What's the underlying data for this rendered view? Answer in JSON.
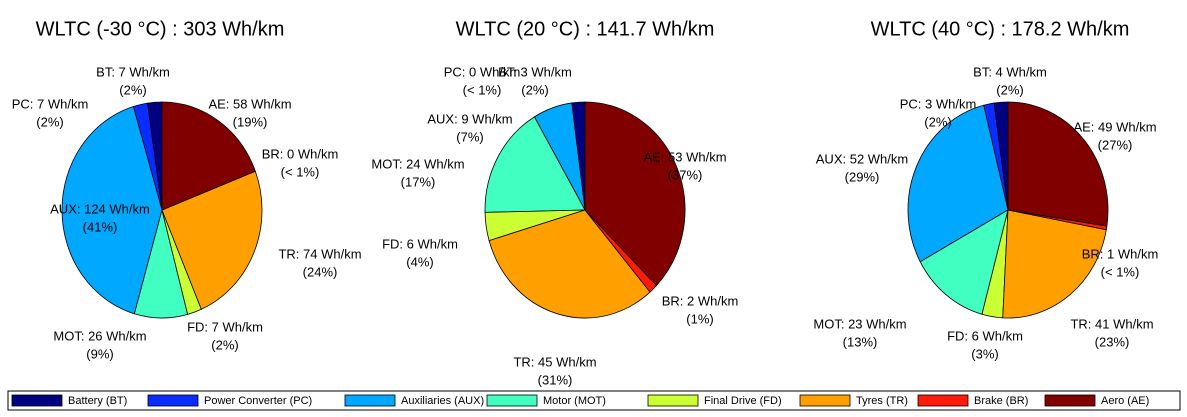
{
  "chart_data": [
    {
      "type": "pie",
      "title": "WLTC (-30 °C) : 303 Wh/km",
      "categories": [
        "BT",
        "PC",
        "AUX",
        "MOT",
        "FD",
        "TR",
        "BR",
        "AE"
      ],
      "values": [
        7,
        7,
        124,
        26,
        7,
        74,
        0,
        58
      ],
      "value_labels": [
        "BT: 7 Wh/km",
        "PC: 7 Wh/km",
        "AUX: 124 Wh/km",
        "MOT: 26 Wh/km",
        "FD: 7 Wh/km",
        "TR: 74 Wh/km",
        "BR: 0 Wh/km",
        "AE: 58 Wh/km"
      ],
      "percent_labels": [
        "(2%)",
        "(2%)",
        "(41%)",
        "(9%)",
        "(2%)",
        "(24%)",
        "(< 1%)",
        "(19%)"
      ]
    },
    {
      "type": "pie",
      "title": "WLTC (20 °C) : 141.7 Wh/km",
      "categories": [
        "BT",
        "PC",
        "AUX",
        "MOT",
        "FD",
        "TR",
        "BR",
        "AE"
      ],
      "values": [
        3,
        0,
        9,
        24,
        6,
        45,
        2,
        53
      ],
      "value_labels": [
        "BT: 3 Wh/km",
        "PC: 0 Wh/km",
        "AUX: 9 Wh/km",
        "MOT: 24 Wh/km",
        "FD: 6 Wh/km",
        "TR: 45 Wh/km",
        "BR: 2 Wh/km",
        "AE: 53 Wh/km"
      ],
      "percent_labels": [
        "(2%)",
        "(< 1%)",
        "(7%)",
        "(17%)",
        "(4%)",
        "(31%)",
        "(1%)",
        "(37%)"
      ]
    },
    {
      "type": "pie",
      "title": "WLTC (40 °C) : 178.2 Wh/km",
      "categories": [
        "BT",
        "PC",
        "AUX",
        "MOT",
        "FD",
        "TR",
        "BR",
        "AE"
      ],
      "values": [
        4,
        3,
        52,
        23,
        6,
        41,
        1,
        49
      ],
      "value_labels": [
        "BT: 4 Wh/km",
        "PC: 3 Wh/km",
        "AUX: 52 Wh/km",
        "MOT: 23 Wh/km",
        "FD: 6 Wh/km",
        "TR: 41 Wh/km",
        "BR: 1 Wh/km",
        "AE: 49 Wh/km"
      ],
      "percent_labels": [
        "(2%)",
        "(2%)",
        "(29%)",
        "(13%)",
        "(3%)",
        "(23%)",
        "(< 1%)",
        "(27%)"
      ]
    }
  ],
  "legend": [
    {
      "name": "Battery (BT)",
      "color": "#000080"
    },
    {
      "name": "Power Converter (PC)",
      "color": "#0a2cff"
    },
    {
      "name": "Auxiliaries (AUX)",
      "color": "#00a8ff"
    },
    {
      "name": "Motor (MOT)",
      "color": "#40ffc0"
    },
    {
      "name": "Final Drive (FD)",
      "color": "#ccff33"
    },
    {
      "name": "Tyres (TR)",
      "color": "#ffa000"
    },
    {
      "name": "Brake (BR)",
      "color": "#ff1a0a"
    },
    {
      "name": "Aero (AE)",
      "color": "#800000"
    }
  ]
}
